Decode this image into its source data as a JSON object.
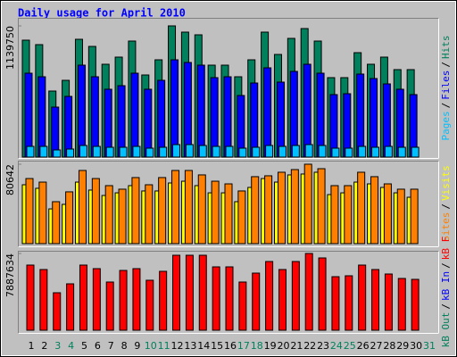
{
  "title": "Daily usage for April 2010",
  "categories": [
    "1",
    "2",
    "3",
    "4",
    "5",
    "6",
    "7",
    "8",
    "9",
    "10",
    "11",
    "12",
    "13",
    "14",
    "15",
    "16",
    "17",
    "18",
    "19",
    "20",
    "21",
    "22",
    "23",
    "24",
    "25",
    "26",
    "27",
    "28",
    "29",
    "30",
    "31"
  ],
  "highlight_indices": [
    2,
    3,
    9,
    10,
    16,
    17,
    23,
    24,
    30
  ],
  "highlight_color": "#00805c",
  "legend_separator": "/",
  "chart_data": [
    {
      "type": "bar",
      "ylim": [
        0,
        1139750
      ],
      "yticks": [
        1139750
      ],
      "series": [
        {
          "name": "Hits",
          "color": "#00805c",
          "values": [
            1015700,
            976900,
            573700,
            666800,
            1023400,
            961400,
            806400,
            868400,
            1007900,
            713300,
            845100,
            1139750,
            1085500,
            1062200,
            798600,
            798600,
            697800,
            845100,
            1085500,
            891600,
            1031200,
            1116500,
            1007900,
            690100,
            690100,
            907100,
            806400,
            868400,
            759800,
            759800,
            null
          ]
        },
        {
          "name": "Files",
          "color": "#0000ff",
          "values": [
            728800,
            697800,
            434200,
            527200,
            798600,
            697800,
            589300,
            620300,
            728800,
            589300,
            666800,
            845100,
            821900,
            798600,
            690100,
            697800,
            535000,
            643500,
            775300,
            651300,
            744300,
            806400,
            728800,
            542700,
            550500,
            721100,
            682300,
            635800,
            589300,
            542700,
            null
          ]
        },
        {
          "name": "Pages",
          "color": "#00c0ff",
          "values": [
            93000,
            93000,
            62000,
            69800,
            100800,
            93000,
            85300,
            85300,
            93000,
            77500,
            85300,
            108500,
            108500,
            100800,
            93000,
            93000,
            77500,
            85300,
            100800,
            93000,
            100800,
            108500,
            100800,
            77500,
            77500,
            93000,
            85300,
            93000,
            85300,
            85300,
            null
          ]
        }
      ]
    },
    {
      "type": "bar",
      "ylim": [
        0,
        80642
      ],
      "yticks": [
        80642
      ],
      "series": [
        {
          "name": "Visits",
          "color": "#ffff00",
          "values": [
            59800,
            56200,
            35300,
            39900,
            62500,
            54400,
            48900,
            51600,
            58900,
            53500,
            53500,
            61600,
            63400,
            58900,
            51600,
            51600,
            42600,
            57100,
            66100,
            62500,
            69800,
            70700,
            72500,
            49800,
            51600,
            62500,
            60700,
            57100,
            51600,
            47100,
            null
          ]
        },
        {
          "name": "Sites",
          "color": "#ff8000",
          "values": [
            66100,
            62500,
            42600,
            52600,
            74300,
            66100,
            58900,
            55300,
            67100,
            59800,
            67100,
            74300,
            74300,
            69800,
            63400,
            60700,
            53500,
            68000,
            68900,
            72500,
            75200,
            80642,
            76100,
            58900,
            58900,
            72500,
            68000,
            60700,
            55300,
            55300,
            null
          ]
        }
      ]
    },
    {
      "type": "bar",
      "ylim": [
        0,
        7887634
      ],
      "yticks": [
        7887634
      ],
      "series": [
        {
          "name": "kB F",
          "color": "#ff0000",
          "values": [
            6695000,
            6237000,
            3852000,
            4769000,
            6695000,
            6328000,
            4953000,
            6145000,
            6328000,
            5136000,
            6053000,
            7704000,
            7704000,
            7704000,
            6512000,
            6512000,
            4953000,
            5870000,
            7062000,
            6237000,
            7062000,
            7887634,
            7429000,
            5503000,
            5595000,
            6695000,
            6237000,
            5778000,
            5320000,
            5228000,
            null
          ]
        },
        {
          "name": "kB In",
          "color": "#0000ff"
        },
        {
          "name": "kB Out",
          "color": "#00805c"
        }
      ]
    }
  ]
}
